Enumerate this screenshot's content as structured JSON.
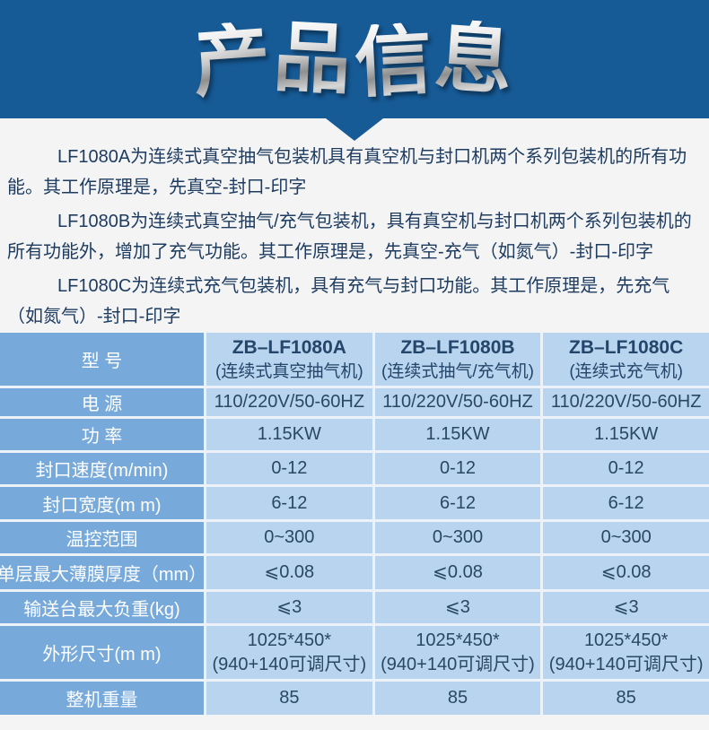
{
  "header": {
    "title": "产品信息"
  },
  "intro": {
    "paragraphs": [
      "LF1080A为连续式真空抽气包装机具有真空机与封口机两个系列包装机的所有功能。其工作原理是，先真空-封口-印字",
      "LF1080B为连续式真空抽气/充气包装机，具有真空机与封口机两个系列包装机的所有功能外，增加了充气功能。其工作原理是，先真空-充气（如氮气）-封口-印字",
      "LF1080C为连续式充气包装机，具有充气与封口功能。其工作原理是，先充气（如氮气）-封口-印字"
    ]
  },
  "table": {
    "header_label": "型 号",
    "columns": [
      {
        "model": "ZB–LF1080A",
        "subtitle": "(连续式真空抽气机)"
      },
      {
        "model": "ZB–LF1080B",
        "subtitle": "(连续式抽气/充气机)"
      },
      {
        "model": "ZB–LF1080C",
        "subtitle": "(连续式充气机)"
      }
    ],
    "rows": [
      {
        "label": "电 源",
        "values": [
          "110/220V/50-60HZ",
          "110/220V/50-60HZ",
          "110/220V/50-60HZ"
        ]
      },
      {
        "label": "功 率",
        "values": [
          "1.15KW",
          "1.15KW",
          "1.15KW"
        ]
      },
      {
        "label": "封口速度(m/min)",
        "values": [
          "0-12",
          "0-12",
          "0-12"
        ]
      },
      {
        "label": "封口宽度(m m)",
        "values": [
          "6-12",
          "6-12",
          "6-12"
        ]
      },
      {
        "label": "温控范围",
        "values": [
          "0~300",
          "0~300",
          "0~300"
        ]
      },
      {
        "label": "单层最大薄膜厚度（mm）",
        "values": [
          "⩽0.08",
          "⩽0.08",
          "⩽0.08"
        ]
      },
      {
        "label": "输送台最大负重(kg)",
        "values": [
          "⩽3",
          "⩽3",
          "⩽3"
        ]
      },
      {
        "label": "外形尺寸(m m)",
        "values": [
          "1025*450*\n(940+140可调尺寸)",
          "1025*450*\n(940+140可调尺寸)",
          "1025*450*\n(940+140可调尺寸)"
        ]
      },
      {
        "label": "整机重量",
        "values": [
          "85",
          "85",
          "85"
        ]
      }
    ]
  },
  "colors": {
    "banner_blue": "#165a96",
    "table_label_blue": "#77aadb",
    "table_cell_blue": "#b8d4ee",
    "table_grid_line": "#edf2f8",
    "text_navy": "#1d3c60",
    "page_background": "#f4f4f5",
    "title_metallic_light": "#ffffff",
    "title_metallic_dark": "#8f8f8f"
  }
}
